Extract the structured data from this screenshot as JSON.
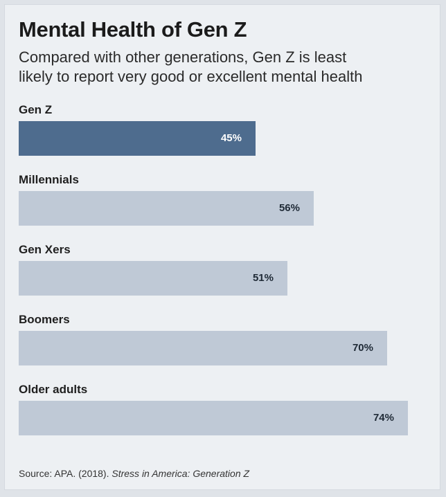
{
  "chart_data": {
    "type": "bar",
    "orientation": "horizontal",
    "title": "Mental Health of Gen Z",
    "subtitle": [
      "Compared with other generations, Gen Z is least",
      "likely to report very good or excellent mental health"
    ],
    "categories": [
      "Gen Z",
      "Millennials",
      "Gen Xers",
      "Boomers",
      "Older adults"
    ],
    "values": [
      45,
      56,
      51,
      70,
      74
    ],
    "value_labels": [
      "45%",
      "56%",
      "51%",
      "70%",
      "74%"
    ],
    "unit": "%",
    "highlight_category": "Gen Z",
    "colors": {
      "highlight": "#4e6c8e",
      "default": "#bfc9d6"
    },
    "grid": false,
    "legend": "none",
    "source_prefix": "Source: APA. (2018). ",
    "source_title": "Stress in America: Generation Z"
  }
}
